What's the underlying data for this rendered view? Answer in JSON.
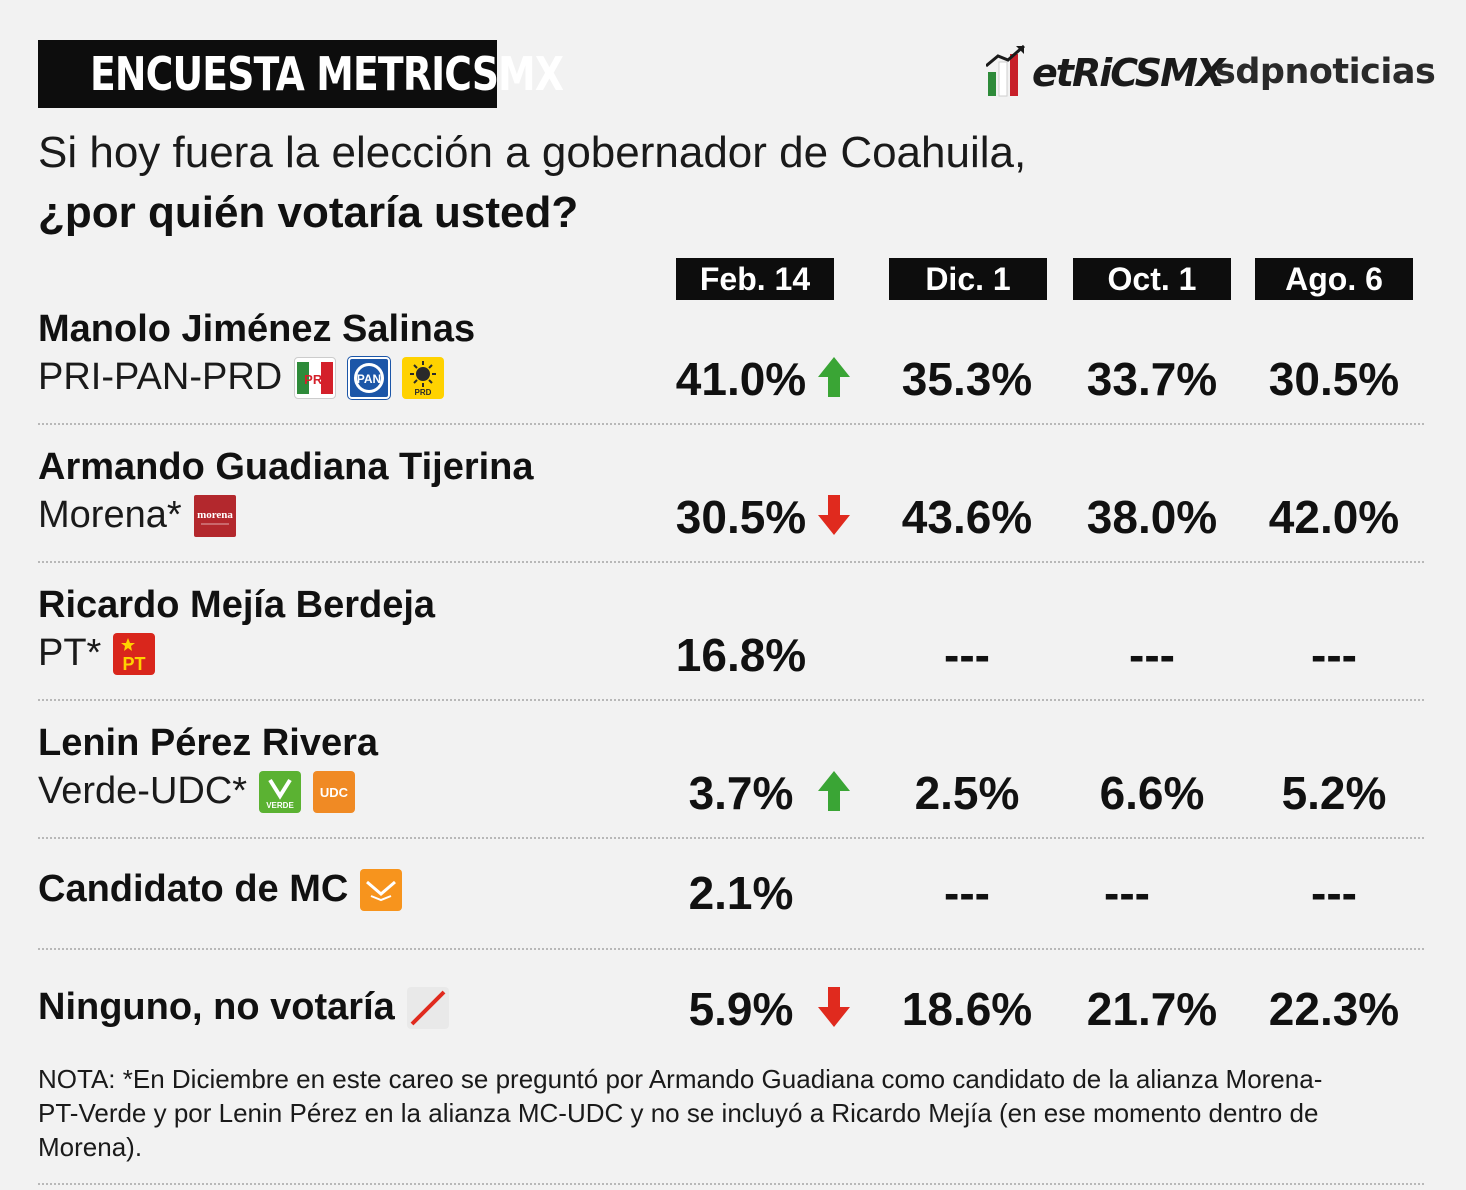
{
  "header": {
    "badge": "ENCUESTA METRICSMX",
    "logo_word": "etRiCSMX",
    "logo_sdp": "sdpnoticias"
  },
  "question": {
    "line1": "Si hoy fuera la elección a gobernador de Coahuila,",
    "line2": "¿por quién votaría usted?"
  },
  "columns": [
    "Feb. 14",
    "Dic. 1",
    "Oct. 1",
    "Ago. 6"
  ],
  "rows": [
    {
      "name": "Manolo Jiménez Salinas",
      "party": "PRI-PAN-PRD",
      "logos": [
        "pri-logo",
        "pan-logo",
        "prd-logo"
      ],
      "values": [
        "41.0%",
        "35.3%",
        "33.7%",
        "30.5%"
      ],
      "trend": "up"
    },
    {
      "name": "Armando Guadiana Tijerina",
      "party": "Morena*",
      "logos": [
        "morena-logo"
      ],
      "values": [
        "30.5%",
        "43.6%",
        "38.0%",
        "42.0%"
      ],
      "trend": "down"
    },
    {
      "name": "Ricardo Mejía Berdeja",
      "party": "PT*",
      "logos": [
        "pt-logo"
      ],
      "values": [
        "16.8%",
        "---",
        "---",
        "---"
      ],
      "trend": "none"
    },
    {
      "name": "Lenin Pérez Rivera",
      "party": "Verde-UDC*",
      "logos": [
        "verde-logo",
        "udc-logo"
      ],
      "values": [
        "3.7%",
        "2.5%",
        "6.6%",
        "5.2%"
      ],
      "trend": "up"
    },
    {
      "name": "Candidato de MC",
      "party": "",
      "logos": [
        "mc-logo"
      ],
      "values": [
        "2.1%",
        "---",
        "---",
        "---"
      ],
      "trend": "none"
    },
    {
      "name": "Ninguno, no votaría",
      "party": "",
      "logos": [
        "null-vote-icon"
      ],
      "values": [
        "5.9%",
        "18.6%",
        "21.7%",
        "22.3%"
      ],
      "trend": "down"
    }
  ],
  "logo_text": {
    "pri": "PRI",
    "pan": "PAN",
    "prd": "PRD",
    "morena": "morena",
    "pt": "PT",
    "verde": "VERDE",
    "udc": "UDC"
  },
  "note": "NOTA: *En Diciembre en este careo se preguntó por Armando Guadiana como candidato de la alianza Morena-PT-Verde y por Lenin Pérez en la alianza MC-UDC y no se incluyó a Ricardo Mejía (en ese momento dentro de Morena).",
  "colors": {
    "up": "#3aa535",
    "down": "#e02a1e",
    "header_bg": "#0d0d0d",
    "background": "#f2f2f2"
  },
  "chart_data": {
    "type": "table",
    "title": "¿por quién votaría usted?",
    "columns": [
      "Feb. 14",
      "Dic. 1",
      "Oct. 1",
      "Ago. 6"
    ],
    "series": [
      {
        "name": "Manolo Jiménez Salinas",
        "values": [
          41.0,
          35.3,
          33.7,
          30.5
        ]
      },
      {
        "name": "Armando Guadiana Tijerina",
        "values": [
          30.5,
          43.6,
          38.0,
          42.0
        ]
      },
      {
        "name": "Ricardo Mejía Berdeja",
        "values": [
          16.8,
          null,
          null,
          null
        ]
      },
      {
        "name": "Lenin Pérez Rivera",
        "values": [
          3.7,
          2.5,
          6.6,
          5.2
        ]
      },
      {
        "name": "Candidato de MC",
        "values": [
          2.1,
          null,
          null,
          null
        ]
      },
      {
        "name": "Ninguno, no votaría",
        "values": [
          5.9,
          18.6,
          21.7,
          22.3
        ]
      }
    ]
  }
}
